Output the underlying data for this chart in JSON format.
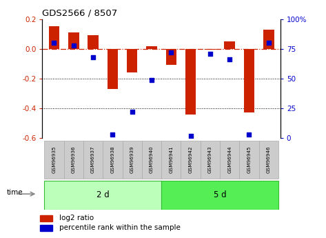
{
  "title": "GDS2566 / 8507",
  "samples": [
    "GSM96935",
    "GSM96936",
    "GSM96937",
    "GSM96938",
    "GSM96939",
    "GSM96940",
    "GSM96941",
    "GSM96942",
    "GSM96943",
    "GSM96944",
    "GSM96945",
    "GSM96946"
  ],
  "log2_ratio": [
    0.15,
    0.11,
    0.09,
    -0.27,
    -0.16,
    0.015,
    -0.11,
    -0.44,
    -0.005,
    0.05,
    -0.43,
    0.13
  ],
  "percentile_rank": [
    80,
    78,
    68,
    3,
    22,
    49,
    72,
    2,
    71,
    66,
    3,
    80
  ],
  "group1_label": "2 d",
  "group2_label": "5 d",
  "group1_count": 6,
  "group2_count": 6,
  "ylim_left": [
    -0.6,
    0.2
  ],
  "ylim_right": [
    0,
    100
  ],
  "bar_color": "#cc2200",
  "dot_color": "#0000cc",
  "group1_color": "#bbffbb",
  "group2_color": "#55ee55",
  "sample_box_color": "#cccccc",
  "right_ticks": [
    0,
    25,
    50,
    75,
    100
  ],
  "right_tick_labels": [
    "0",
    "25",
    "50",
    "75",
    "100%"
  ],
  "left_ticks": [
    -0.6,
    -0.4,
    -0.2,
    0.0,
    0.2
  ],
  "dotted_lines": [
    -0.2,
    -0.4
  ],
  "time_label": "time",
  "legend_items": [
    "log2 ratio",
    "percentile rank within the sample"
  ]
}
